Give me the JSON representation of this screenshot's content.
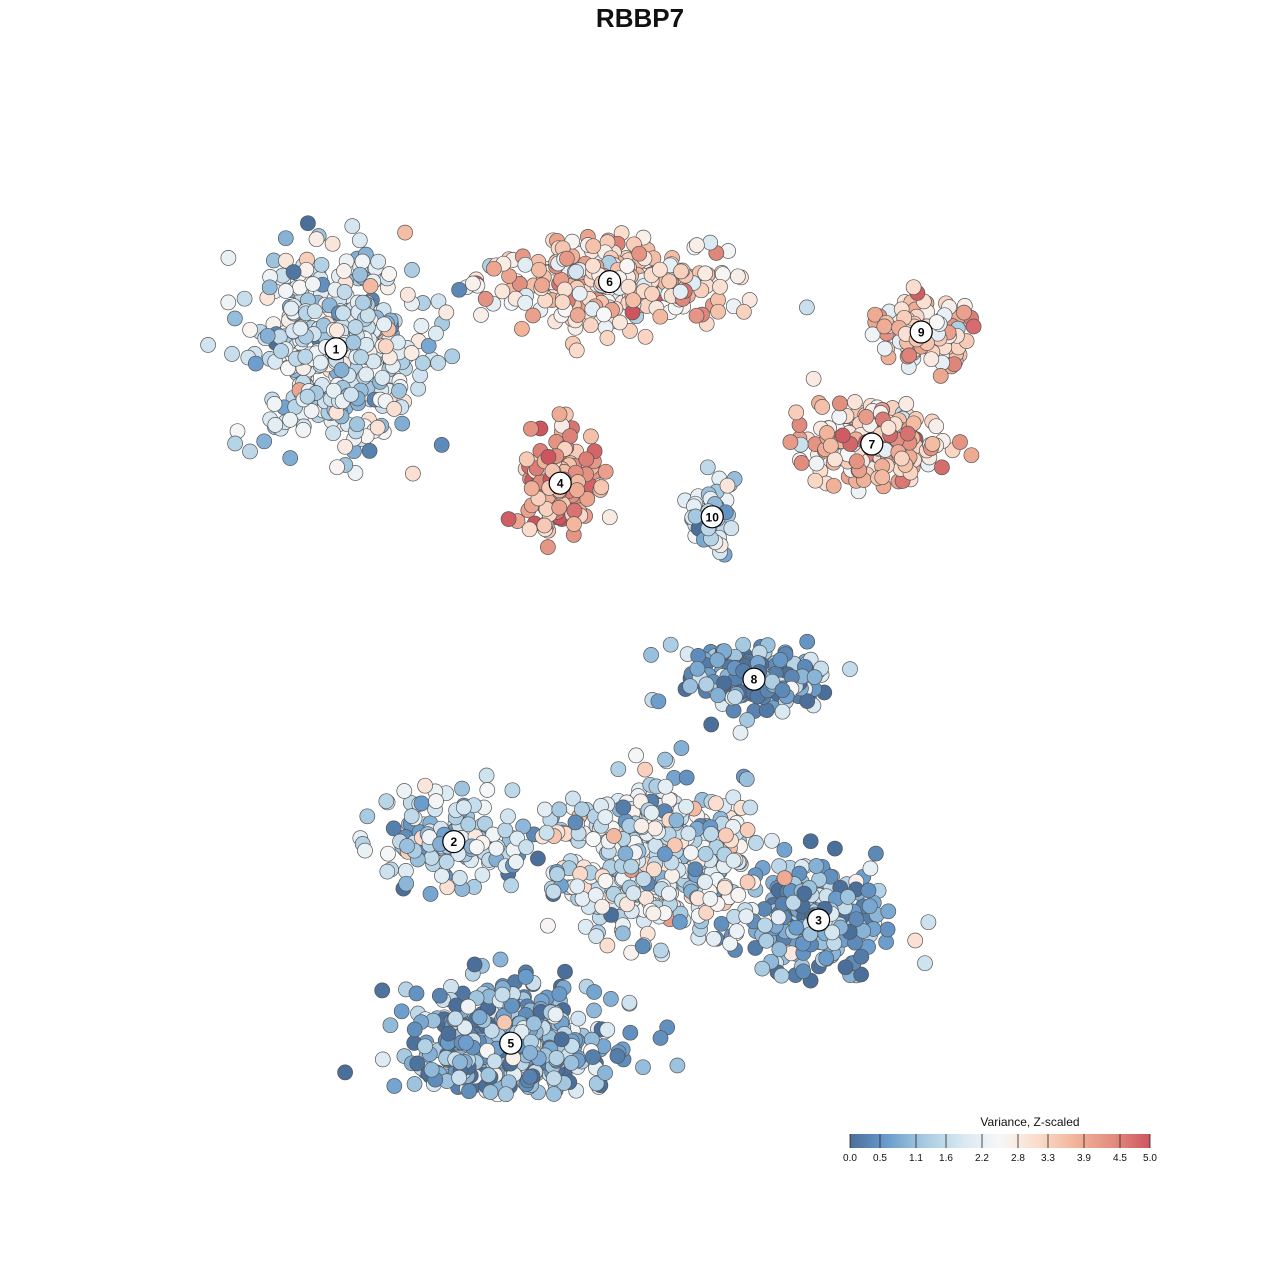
{
  "chart_data": {
    "type": "scatter",
    "title": "RBBP7",
    "colorbar": {
      "title": "Variance, Z-scaled",
      "range": [
        0.0,
        5.0
      ],
      "ticks": [
        "0.0",
        "0.5",
        "1.1",
        "1.6",
        "2.2",
        "2.8",
        "3.3",
        "3.9",
        "4.5",
        "5.0"
      ],
      "colors": [
        "#4a6f9a",
        "#6a9ccc",
        "#a8cbe2",
        "#d8e8f2",
        "#f7f7f7",
        "#fbdccc",
        "#f2b49a",
        "#e28d7f",
        "#cd5560"
      ],
      "placement": "bottom-right"
    },
    "clusters": [
      {
        "label": "1",
        "x": -8.0,
        "y": 5.2,
        "mean_value": 1.8,
        "spread": [
          2.6,
          1.9
        ],
        "n": 420
      },
      {
        "label": "2",
        "x": -4.9,
        "y": -3.6,
        "mean_value": 1.4,
        "spread": [
          2.2,
          0.9
        ],
        "n": 140
      },
      {
        "label": "3",
        "x": 4.7,
        "y": -5.0,
        "mean_value": 1.0,
        "spread": [
          2.0,
          1.0
        ],
        "n": 260
      },
      {
        "label": "4",
        "x": -2.1,
        "y": 2.8,
        "mean_value": 3.9,
        "spread": [
          1.1,
          1.1
        ],
        "n": 160
      },
      {
        "label": "5",
        "x": -3.4,
        "y": -7.2,
        "mean_value": 0.9,
        "spread": [
          2.8,
          1.2
        ],
        "n": 520
      },
      {
        "label": "6",
        "x": -0.8,
        "y": 6.4,
        "mean_value": 3.1,
        "spread": [
          3.4,
          0.8
        ],
        "n": 300
      },
      {
        "label": "7",
        "x": 6.1,
        "y": 3.5,
        "mean_value": 3.4,
        "spread": [
          2.2,
          0.8
        ],
        "n": 200
      },
      {
        "label": "8",
        "x": 3.0,
        "y": -0.7,
        "mean_value": 0.8,
        "spread": [
          2.2,
          0.6
        ],
        "n": 180
      },
      {
        "label": "9",
        "x": 7.4,
        "y": 5.5,
        "mean_value": 3.3,
        "spread": [
          1.6,
          0.7
        ],
        "n": 110
      },
      {
        "label": "10",
        "x": 1.9,
        "y": 2.2,
        "mean_value": 1.6,
        "spread": [
          0.8,
          0.8
        ],
        "n": 60
      },
      {
        "label": "",
        "x": 0.4,
        "y": -3.9,
        "mean_value": 1.9,
        "spread": [
          3.0,
          1.6
        ],
        "n": 460
      }
    ]
  }
}
